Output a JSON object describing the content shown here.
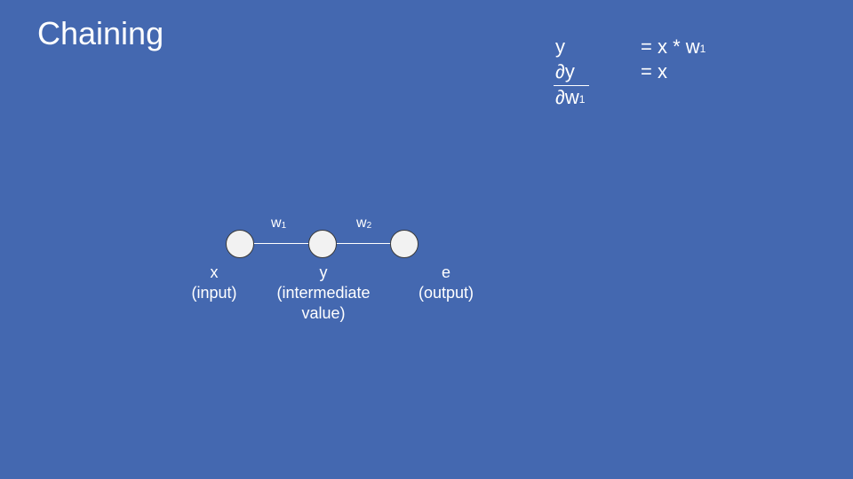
{
  "slide": {
    "title": "Chaining"
  },
  "equations": {
    "line1": {
      "lhs": "y",
      "rhs_prefix": "= x * w",
      "rhs_sub": "1"
    },
    "line2": {
      "numerator": "∂y",
      "rhs": "= x"
    },
    "line3": {
      "denominator_prefix": "∂w",
      "denominator_sub": "1"
    }
  },
  "diagram": {
    "edges": [
      {
        "label_base": "w",
        "label_sub": "1"
      },
      {
        "label_base": "w",
        "label_sub": "2"
      }
    ],
    "nodes": [
      {
        "name": "x",
        "role": "(input)"
      },
      {
        "name": "y",
        "role_line1": "(intermediate",
        "role_line2": "value)"
      },
      {
        "name": "e",
        "role": "(output)"
      }
    ]
  }
}
